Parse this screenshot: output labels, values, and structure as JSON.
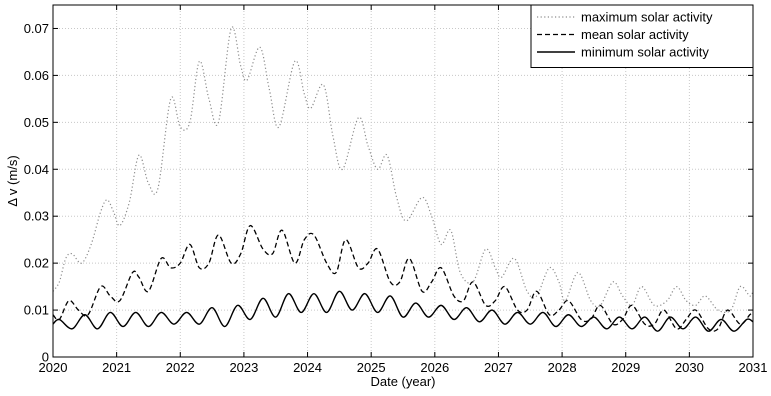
{
  "chart_data": {
    "type": "line",
    "xlabel": "Date (year)",
    "ylabel": "Δ v (m/s)",
    "xlim": [
      2020,
      2031
    ],
    "ylim": [
      0,
      0.075
    ],
    "xticks": [
      2020,
      2021,
      2022,
      2023,
      2024,
      2025,
      2026,
      2027,
      2028,
      2029,
      2030,
      2031
    ],
    "yticks": [
      0,
      0.01,
      0.02,
      0.03,
      0.04,
      0.05,
      0.06,
      0.07
    ],
    "ytick_labels": [
      "0",
      "0.01",
      "0.02",
      "0.03",
      "0.04",
      "0.05",
      "0.06",
      "0.07"
    ],
    "grid": true,
    "legend_position": "top-right",
    "series": [
      {
        "name": "maximum solar activity",
        "style": "dotted",
        "color": "#8c8c8c",
        "x": [
          2020.0,
          2020.1,
          2020.2,
          2020.3,
          2020.45,
          2020.6,
          2020.75,
          2020.85,
          2020.95,
          2021.05,
          2021.2,
          2021.35,
          2021.5,
          2021.65,
          2021.85,
          2022.0,
          2022.15,
          2022.3,
          2022.45,
          2022.6,
          2022.8,
          2022.95,
          2023.05,
          2023.25,
          2023.4,
          2023.55,
          2023.8,
          2023.95,
          2024.05,
          2024.25,
          2024.4,
          2024.55,
          2024.8,
          2024.95,
          2025.1,
          2025.25,
          2025.4,
          2025.55,
          2025.8,
          2025.95,
          2026.1,
          2026.25,
          2026.4,
          2026.6,
          2026.8,
          2026.95,
          2027.05,
          2027.25,
          2027.45,
          2027.6,
          2027.8,
          2027.95,
          2028.05,
          2028.25,
          2028.45,
          2028.6,
          2028.8,
          2028.95,
          2029.1,
          2029.25,
          2029.45,
          2029.65,
          2029.8,
          2029.95,
          2030.1,
          2030.25,
          2030.45,
          2030.65,
          2030.8,
          2030.95,
          2031.0
        ],
        "y": [
          0.014,
          0.016,
          0.021,
          0.022,
          0.02,
          0.024,
          0.031,
          0.0335,
          0.031,
          0.028,
          0.033,
          0.043,
          0.037,
          0.036,
          0.055,
          0.049,
          0.05,
          0.063,
          0.055,
          0.05,
          0.07,
          0.062,
          0.059,
          0.066,
          0.057,
          0.049,
          0.063,
          0.056,
          0.053,
          0.058,
          0.047,
          0.04,
          0.051,
          0.045,
          0.04,
          0.043,
          0.034,
          0.029,
          0.034,
          0.03,
          0.024,
          0.027,
          0.018,
          0.016,
          0.023,
          0.019,
          0.017,
          0.021,
          0.014,
          0.013,
          0.019,
          0.016,
          0.012,
          0.018,
          0.012,
          0.011,
          0.016,
          0.013,
          0.011,
          0.015,
          0.011,
          0.012,
          0.015,
          0.012,
          0.011,
          0.013,
          0.01,
          0.01,
          0.015,
          0.013,
          0.014
        ]
      },
      {
        "name": "mean solar activity",
        "style": "dashed",
        "color": "#000000",
        "x": [
          2020.0,
          2020.1,
          2020.25,
          2020.4,
          2020.55,
          2020.75,
          2020.9,
          2021.05,
          2021.25,
          2021.35,
          2021.5,
          2021.7,
          2021.85,
          2022.0,
          2022.15,
          2022.3,
          2022.45,
          2022.6,
          2022.8,
          2022.95,
          2023.1,
          2023.3,
          2023.45,
          2023.6,
          2023.8,
          2023.95,
          2024.1,
          2024.3,
          2024.45,
          2024.6,
          2024.8,
          2024.95,
          2025.1,
          2025.3,
          2025.45,
          2025.6,
          2025.8,
          2025.95,
          2026.1,
          2026.3,
          2026.45,
          2026.6,
          2026.8,
          2026.95,
          2027.1,
          2027.3,
          2027.45,
          2027.6,
          2027.8,
          2027.95,
          2028.1,
          2028.3,
          2028.45,
          2028.6,
          2028.8,
          2028.95,
          2029.1,
          2029.3,
          2029.45,
          2029.6,
          2029.8,
          2029.95,
          2030.1,
          2030.3,
          2030.45,
          2030.6,
          2030.8,
          2030.95,
          2031.0
        ],
        "y": [
          0.009,
          0.008,
          0.012,
          0.01,
          0.009,
          0.015,
          0.013,
          0.012,
          0.018,
          0.017,
          0.014,
          0.021,
          0.019,
          0.02,
          0.024,
          0.019,
          0.02,
          0.026,
          0.02,
          0.022,
          0.028,
          0.023,
          0.022,
          0.027,
          0.02,
          0.025,
          0.026,
          0.02,
          0.018,
          0.025,
          0.019,
          0.02,
          0.023,
          0.016,
          0.016,
          0.021,
          0.014,
          0.016,
          0.019,
          0.013,
          0.012,
          0.016,
          0.011,
          0.012,
          0.015,
          0.01,
          0.01,
          0.014,
          0.009,
          0.01,
          0.012,
          0.008,
          0.008,
          0.011,
          0.007,
          0.008,
          0.011,
          0.007,
          0.007,
          0.01,
          0.006,
          0.008,
          0.01,
          0.006,
          0.006,
          0.01,
          0.007,
          0.009,
          0.0095
        ]
      },
      {
        "name": "minimum solar activity",
        "style": "solid",
        "color": "#000000",
        "x": [
          2020.0,
          2020.1,
          2020.3,
          2020.5,
          2020.7,
          2020.9,
          2021.1,
          2021.3,
          2021.5,
          2021.7,
          2021.9,
          2022.1,
          2022.3,
          2022.5,
          2022.7,
          2022.9,
          2023.1,
          2023.3,
          2023.5,
          2023.7,
          2023.9,
          2024.1,
          2024.3,
          2024.5,
          2024.7,
          2024.9,
          2025.1,
          2025.3,
          2025.5,
          2025.7,
          2025.9,
          2026.1,
          2026.3,
          2026.5,
          2026.7,
          2026.9,
          2027.1,
          2027.3,
          2027.5,
          2027.7,
          2027.9,
          2028.1,
          2028.3,
          2028.5,
          2028.7,
          2028.9,
          2029.1,
          2029.3,
          2029.5,
          2029.7,
          2029.9,
          2030.1,
          2030.3,
          2030.5,
          2030.7,
          2030.9,
          2031.0
        ],
        "y": [
          0.007,
          0.008,
          0.006,
          0.009,
          0.006,
          0.0095,
          0.0065,
          0.0095,
          0.0065,
          0.0095,
          0.007,
          0.0095,
          0.007,
          0.0105,
          0.0065,
          0.011,
          0.008,
          0.0125,
          0.0085,
          0.0135,
          0.0095,
          0.0135,
          0.0095,
          0.014,
          0.01,
          0.0135,
          0.0095,
          0.013,
          0.0085,
          0.0115,
          0.0085,
          0.011,
          0.008,
          0.0105,
          0.0075,
          0.01,
          0.007,
          0.0095,
          0.007,
          0.0095,
          0.0065,
          0.009,
          0.0065,
          0.0085,
          0.006,
          0.0085,
          0.006,
          0.0085,
          0.0055,
          0.0085,
          0.006,
          0.0085,
          0.0055,
          0.008,
          0.0055,
          0.008,
          0.0075
        ]
      }
    ]
  }
}
